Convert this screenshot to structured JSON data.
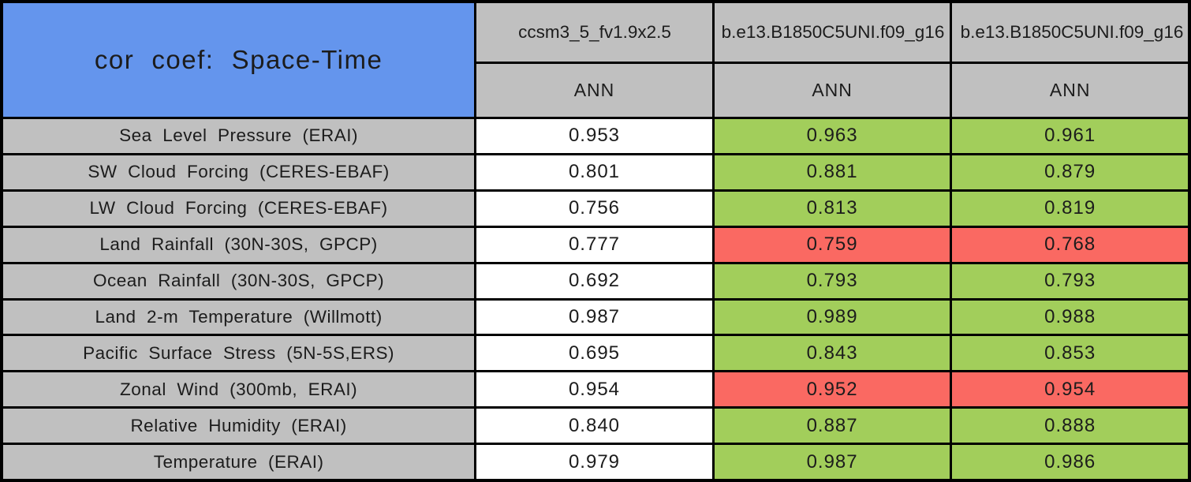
{
  "chart_data": {
    "type": "table",
    "title": "cor coef: Space-Time",
    "columns": [
      {
        "model": "ccsm3_5_fv1.9x2.5",
        "season": "ANN"
      },
      {
        "model": "b.e13.B1850C5UNI.f09_g16",
        "season": "ANN"
      },
      {
        "model": "b.e13.B1850C5UNI.f09_g16",
        "season": "ANN"
      }
    ],
    "rows": [
      {
        "label": "Sea Level Pressure (ERAI)",
        "values": [
          "0.953",
          "0.963",
          "0.961"
        ],
        "cell_colors": [
          "white",
          "green",
          "green"
        ]
      },
      {
        "label": "SW Cloud Forcing (CERES-EBAF)",
        "values": [
          "0.801",
          "0.881",
          "0.879"
        ],
        "cell_colors": [
          "white",
          "green",
          "green"
        ]
      },
      {
        "label": "LW Cloud Forcing (CERES-EBAF)",
        "values": [
          "0.756",
          "0.813",
          "0.819"
        ],
        "cell_colors": [
          "white",
          "green",
          "green"
        ]
      },
      {
        "label": "Land Rainfall (30N-30S, GPCP)",
        "values": [
          "0.777",
          "0.759",
          "0.768"
        ],
        "cell_colors": [
          "white",
          "red",
          "red"
        ]
      },
      {
        "label": "Ocean Rainfall (30N-30S, GPCP)",
        "values": [
          "0.692",
          "0.793",
          "0.793"
        ],
        "cell_colors": [
          "white",
          "green",
          "green"
        ]
      },
      {
        "label": "Land 2-m Temperature (Willmott)",
        "values": [
          "0.987",
          "0.989",
          "0.988"
        ],
        "cell_colors": [
          "white",
          "green",
          "green"
        ]
      },
      {
        "label": "Pacific Surface Stress (5N-5S,ERS)",
        "values": [
          "0.695",
          "0.843",
          "0.853"
        ],
        "cell_colors": [
          "white",
          "green",
          "green"
        ]
      },
      {
        "label": "Zonal Wind (300mb, ERAI)",
        "values": [
          "0.954",
          "0.952",
          "0.954"
        ],
        "cell_colors": [
          "white",
          "red",
          "red"
        ]
      },
      {
        "label": "Relative Humidity (ERAI)",
        "values": [
          "0.840",
          "0.887",
          "0.888"
        ],
        "cell_colors": [
          "white",
          "green",
          "green"
        ]
      },
      {
        "label": "Temperature (ERAI)",
        "values": [
          "0.979",
          "0.987",
          "0.986"
        ],
        "cell_colors": [
          "white",
          "green",
          "green"
        ]
      }
    ],
    "layout": {
      "grid": "on",
      "legend": "none",
      "value_columns": 3,
      "seasons_row": true
    },
    "colors": {
      "title_bg": "#6495ED",
      "header_bg": "#C0C0C0",
      "green": "#A2CE5B",
      "red": "#FA6962",
      "white": "#FFFFFF",
      "border": "#000000",
      "text": "#1C1C1C"
    }
  }
}
